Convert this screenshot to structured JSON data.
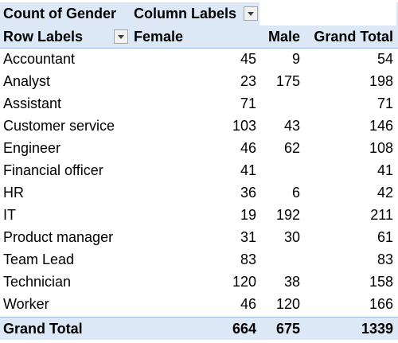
{
  "pivot": {
    "header_top": {
      "values_label": "Count of Gender",
      "column_labels": "Column Labels"
    },
    "header_cols": {
      "row_labels": "Row Labels",
      "female": "Female",
      "male": "Male",
      "grand_total": "Grand Total"
    },
    "rows": [
      {
        "label": "Accountant",
        "female": "45",
        "male": "9",
        "total": "54"
      },
      {
        "label": "Analyst",
        "female": "23",
        "male": "175",
        "total": "198"
      },
      {
        "label": "Assistant",
        "female": "71",
        "male": "",
        "total": "71"
      },
      {
        "label": "Customer service",
        "female": "103",
        "male": "43",
        "total": "146"
      },
      {
        "label": "Engineer",
        "female": "46",
        "male": "62",
        "total": "108"
      },
      {
        "label": "Financial officer",
        "female": "41",
        "male": "",
        "total": "41"
      },
      {
        "label": "HR",
        "female": "36",
        "male": "6",
        "total": "42"
      },
      {
        "label": "IT",
        "female": "19",
        "male": "192",
        "total": "211"
      },
      {
        "label": "Product manager",
        "female": "31",
        "male": "30",
        "total": "61"
      },
      {
        "label": "Team Lead",
        "female": "83",
        "male": "",
        "total": "83"
      },
      {
        "label": "Technician",
        "female": "120",
        "male": "38",
        "total": "158"
      },
      {
        "label": "Worker",
        "female": "46",
        "male": "120",
        "total": "166"
      }
    ],
    "grand_total": {
      "label": "Grand Total",
      "female": "664",
      "male": "675",
      "total": "1339"
    }
  }
}
